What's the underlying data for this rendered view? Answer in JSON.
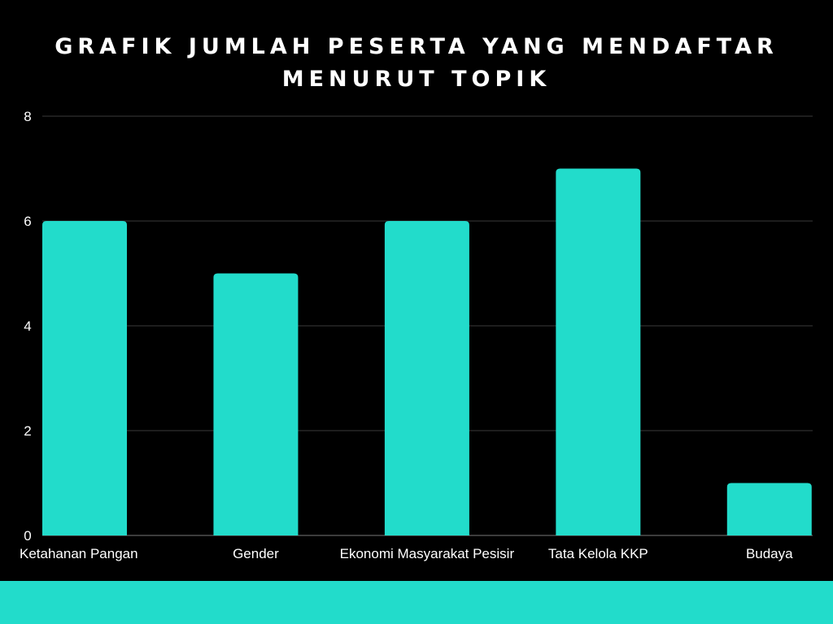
{
  "title_lines": [
    "GRAFIK JUMLAH PESERTA YANG MENDAFTAR",
    "MENURUT TOPIK"
  ],
  "colors": {
    "background": "#000000",
    "bar": "#22dccb",
    "band": "#22dccb",
    "grid": "#3a3a3a",
    "axis_text": "#ffffff"
  },
  "chart_data": {
    "type": "bar",
    "title": "GRAFIK JUMLAH PESERTA YANG MENDAFTAR MENURUT TOPIK",
    "categories": [
      "Ketahanan Pangan",
      "Gender",
      "Ekonomi Masyarakat Pesisir",
      "Tata Kelola KKP",
      "Budaya"
    ],
    "values": [
      6,
      5,
      6,
      7,
      1
    ],
    "yticks": [
      0,
      2,
      4,
      6,
      8
    ],
    "ylim": [
      0,
      8
    ],
    "xlabel": "",
    "ylabel": "",
    "grid": true
  }
}
